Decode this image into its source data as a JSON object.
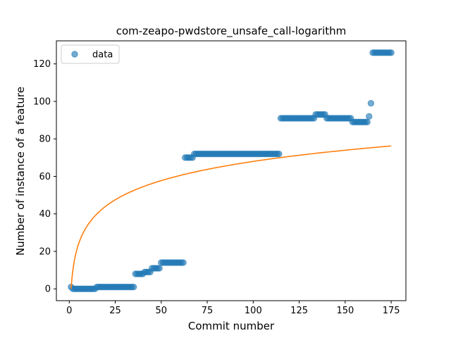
{
  "chart_data": {
    "type": "scatter",
    "title": "com-zeapo-pwdstore_unsafe_call-logarithm",
    "xlabel": "Commit number",
    "ylabel": "Number of instance of a feature",
    "xlim": [
      -7,
      183
    ],
    "ylim": [
      -6.3,
      132.3
    ],
    "xticks": [
      0,
      25,
      50,
      75,
      100,
      125,
      150,
      175
    ],
    "yticks": [
      0,
      20,
      40,
      60,
      80,
      100,
      120
    ],
    "grid": false,
    "legend": {
      "placement": "upper-left",
      "entries": [
        "data"
      ]
    },
    "colors": {
      "data": "#1f77b4",
      "fit": "#ff7f0e"
    },
    "series": [
      {
        "name": "data",
        "kind": "scatter",
        "points": [
          [
            1,
            1
          ],
          [
            2,
            0
          ],
          [
            3,
            0
          ],
          [
            4,
            0
          ],
          [
            5,
            0
          ],
          [
            6,
            0
          ],
          [
            7,
            0
          ],
          [
            8,
            0
          ],
          [
            9,
            0
          ],
          [
            10,
            0
          ],
          [
            11,
            0
          ],
          [
            12,
            0
          ],
          [
            13,
            0
          ],
          [
            14,
            0
          ],
          [
            15,
            1
          ],
          [
            16,
            1
          ],
          [
            17,
            1
          ],
          [
            18,
            1
          ],
          [
            19,
            1
          ],
          [
            20,
            1
          ],
          [
            21,
            1
          ],
          [
            22,
            1
          ],
          [
            23,
            1
          ],
          [
            24,
            1
          ],
          [
            25,
            1
          ],
          [
            26,
            1
          ],
          [
            27,
            1
          ],
          [
            28,
            1
          ],
          [
            29,
            1
          ],
          [
            30,
            1
          ],
          [
            31,
            1
          ],
          [
            32,
            1
          ],
          [
            33,
            1
          ],
          [
            34,
            1
          ],
          [
            35,
            1
          ],
          [
            36,
            8
          ],
          [
            37,
            8
          ],
          [
            38,
            8
          ],
          [
            39,
            8
          ],
          [
            40,
            8
          ],
          [
            41,
            9
          ],
          [
            42,
            9
          ],
          [
            43,
            9
          ],
          [
            44,
            9
          ],
          [
            45,
            11
          ],
          [
            46,
            11
          ],
          [
            47,
            11
          ],
          [
            48,
            11
          ],
          [
            49,
            11
          ],
          [
            50,
            14
          ],
          [
            51,
            14
          ],
          [
            52,
            14
          ],
          [
            53,
            14
          ],
          [
            54,
            14
          ],
          [
            55,
            14
          ],
          [
            56,
            14
          ],
          [
            57,
            14
          ],
          [
            58,
            14
          ],
          [
            59,
            14
          ],
          [
            60,
            14
          ],
          [
            61,
            14
          ],
          [
            62,
            14
          ],
          [
            63,
            70
          ],
          [
            64,
            70
          ],
          [
            65,
            70
          ],
          [
            66,
            70
          ],
          [
            67,
            70
          ],
          [
            68,
            72
          ],
          [
            69,
            72
          ],
          [
            70,
            72
          ],
          [
            71,
            72
          ],
          [
            72,
            72
          ],
          [
            73,
            72
          ],
          [
            74,
            72
          ],
          [
            75,
            72
          ],
          [
            76,
            72
          ],
          [
            77,
            72
          ],
          [
            78,
            72
          ],
          [
            79,
            72
          ],
          [
            80,
            72
          ],
          [
            81,
            72
          ],
          [
            82,
            72
          ],
          [
            83,
            72
          ],
          [
            84,
            72
          ],
          [
            85,
            72
          ],
          [
            86,
            72
          ],
          [
            87,
            72
          ],
          [
            88,
            72
          ],
          [
            89,
            72
          ],
          [
            90,
            72
          ],
          [
            91,
            72
          ],
          [
            92,
            72
          ],
          [
            93,
            72
          ],
          [
            94,
            72
          ],
          [
            95,
            72
          ],
          [
            96,
            72
          ],
          [
            97,
            72
          ],
          [
            98,
            72
          ],
          [
            99,
            72
          ],
          [
            100,
            72
          ],
          [
            101,
            72
          ],
          [
            102,
            72
          ],
          [
            103,
            72
          ],
          [
            104,
            72
          ],
          [
            105,
            72
          ],
          [
            106,
            72
          ],
          [
            107,
            72
          ],
          [
            108,
            72
          ],
          [
            109,
            72
          ],
          [
            110,
            72
          ],
          [
            111,
            72
          ],
          [
            112,
            72
          ],
          [
            113,
            72
          ],
          [
            114,
            72
          ],
          [
            115,
            91
          ],
          [
            116,
            91
          ],
          [
            117,
            91
          ],
          [
            118,
            91
          ],
          [
            119,
            91
          ],
          [
            120,
            91
          ],
          [
            121,
            91
          ],
          [
            122,
            91
          ],
          [
            123,
            91
          ],
          [
            124,
            91
          ],
          [
            125,
            91
          ],
          [
            126,
            91
          ],
          [
            127,
            91
          ],
          [
            128,
            91
          ],
          [
            129,
            91
          ],
          [
            130,
            91
          ],
          [
            131,
            91
          ],
          [
            132,
            91
          ],
          [
            133,
            91
          ],
          [
            134,
            93
          ],
          [
            135,
            93
          ],
          [
            136,
            93
          ],
          [
            137,
            93
          ],
          [
            138,
            93
          ],
          [
            139,
            93
          ],
          [
            140,
            91
          ],
          [
            141,
            91
          ],
          [
            142,
            91
          ],
          [
            143,
            91
          ],
          [
            144,
            91
          ],
          [
            145,
            91
          ],
          [
            146,
            91
          ],
          [
            147,
            91
          ],
          [
            148,
            91
          ],
          [
            149,
            91
          ],
          [
            150,
            91
          ],
          [
            151,
            91
          ],
          [
            152,
            91
          ],
          [
            153,
            91
          ],
          [
            154,
            89
          ],
          [
            155,
            89
          ],
          [
            156,
            89
          ],
          [
            157,
            89
          ],
          [
            158,
            89
          ],
          [
            159,
            89
          ],
          [
            160,
            89
          ],
          [
            161,
            89
          ],
          [
            162,
            89
          ],
          [
            163,
            92
          ],
          [
            164,
            99
          ],
          [
            165,
            126
          ],
          [
            166,
            126
          ],
          [
            167,
            126
          ],
          [
            168,
            126
          ],
          [
            169,
            126
          ],
          [
            170,
            126
          ],
          [
            171,
            126
          ],
          [
            172,
            126
          ],
          [
            173,
            126
          ],
          [
            174,
            126
          ],
          [
            175,
            126
          ]
        ]
      },
      {
        "kind": "line",
        "model": "logarithmic",
        "coefficients": {
          "a": 14.76,
          "b": 0.0
        },
        "x_range": [
          1,
          175
        ]
      }
    ]
  }
}
